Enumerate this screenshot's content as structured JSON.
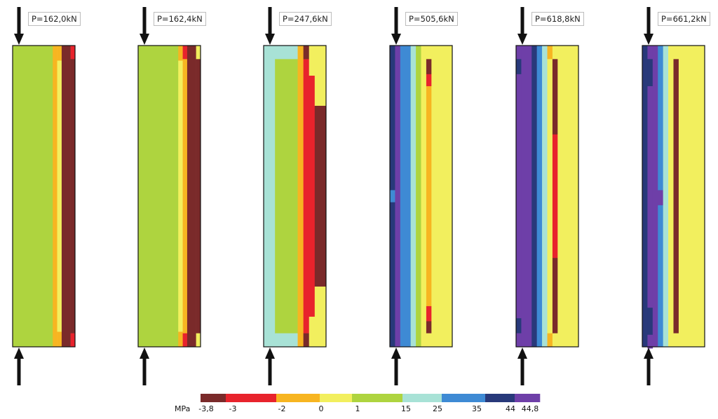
{
  "colors": {
    "c_m38": "#7a2a2a",
    "c_m3": "#e8232c",
    "c_m2": "#f7b521",
    "c_0": "#f2ef5e",
    "c_1": "#aed43f",
    "c_15": "#a8e2d6",
    "c_25": "#3e8ad4",
    "c_35": "#28397a",
    "c_44": "#6e3fa8",
    "outline": "#111111",
    "arrow": "#111111"
  },
  "legend": {
    "unit": "MPa",
    "bands": [
      "c_m38",
      "c_m3",
      "c_m2",
      "c_0",
      "c_1",
      "c_15",
      "c_25",
      "c_35",
      "c_44"
    ],
    "ticks": [
      "-3,8",
      "-3",
      "-2",
      "0",
      "1",
      "15",
      "25",
      "35",
      "44",
      "44,8"
    ]
  },
  "panels": [
    {
      "load_label": "P=162,0kN",
      "columns": [
        {
          "w": 9,
          "seq": [
            [
              "c_1",
              1
            ]
          ]
        },
        {
          "w": 1,
          "seq": [
            [
              "c_m2",
              1
            ]
          ]
        },
        {
          "w": 1,
          "seq": [
            [
              "c_m2",
              0.05
            ],
            [
              "c_0",
              0.9
            ],
            [
              "c_m2",
              0.05
            ]
          ]
        },
        {
          "w": 2,
          "seq": [
            [
              "c_m38",
              1
            ]
          ]
        },
        {
          "w": 1,
          "seq": [
            [
              "c_m3",
              0.045
            ],
            [
              "c_m38",
              0.91
            ],
            [
              "c_m3",
              0.045
            ]
          ]
        }
      ]
    },
    {
      "load_label": "P=162,4kN",
      "columns": [
        {
          "w": 9,
          "seq": [
            [
              "c_1",
              1
            ]
          ]
        },
        {
          "w": 1,
          "seq": [
            [
              "c_m2",
              0.05
            ],
            [
              "c_0",
              0.9
            ],
            [
              "c_m2",
              0.05
            ]
          ]
        },
        {
          "w": 1,
          "seq": [
            [
              "c_m3",
              0.045
            ],
            [
              "c_m2",
              0.91
            ],
            [
              "c_m3",
              0.045
            ]
          ]
        },
        {
          "w": 2,
          "seq": [
            [
              "c_m38",
              1
            ]
          ]
        },
        {
          "w": 1,
          "seq": [
            [
              "c_0",
              0.045
            ],
            [
              "c_m38",
              0.91
            ],
            [
              "c_0",
              0.045
            ]
          ]
        }
      ]
    },
    {
      "load_label": "P=247,6kN",
      "columns": [
        {
          "w": 2,
          "seq": [
            [
              "c_15",
              1
            ]
          ]
        },
        {
          "w": 4,
          "seq": [
            [
              "c_15",
              0.045
            ],
            [
              "c_1",
              0.91
            ],
            [
              "c_15",
              0.045
            ]
          ]
        },
        {
          "w": 1,
          "seq": [
            [
              "c_m2",
              1
            ]
          ]
        },
        {
          "w": 1,
          "seq": [
            [
              "c_m38",
              0.045
            ],
            [
              "c_m3",
              0.91
            ],
            [
              "c_m38",
              0.045
            ]
          ]
        },
        {
          "w": 1,
          "seq": [
            [
              "c_0",
              0.1
            ],
            [
              "c_m3",
              0.8
            ],
            [
              "c_0",
              0.1
            ]
          ]
        },
        {
          "w": 2,
          "seq": [
            [
              "c_0",
              0.2
            ],
            [
              "c_m38",
              0.6
            ],
            [
              "c_0",
              0.2
            ]
          ]
        }
      ]
    },
    {
      "load_label": "P=505,6kN",
      "columns": [
        {
          "w": 1,
          "seq": [
            [
              "c_35",
              0.48
            ],
            [
              "c_25",
              0.04
            ],
            [
              "c_35",
              0.48
            ]
          ]
        },
        {
          "w": 1,
          "seq": [
            [
              "c_44",
              1
            ]
          ]
        },
        {
          "w": 2,
          "seq": [
            [
              "c_25",
              1
            ]
          ]
        },
        {
          "w": 1,
          "seq": [
            [
              "c_15",
              1
            ]
          ]
        },
        {
          "w": 1,
          "seq": [
            [
              "c_1",
              1
            ]
          ]
        },
        {
          "w": 1,
          "seq": [
            [
              "c_0",
              1
            ]
          ]
        },
        {
          "w": 1,
          "seq": [
            [
              "c_0",
              0.045
            ],
            [
              "c_m38",
              0.05
            ],
            [
              "c_m3",
              0.04
            ],
            [
              "c_m2",
              0.73
            ],
            [
              "c_m3",
              0.05
            ],
            [
              "c_m38",
              0.04
            ],
            [
              "c_0",
              0.045
            ]
          ]
        },
        {
          "w": 4,
          "seq": [
            [
              "c_0",
              1
            ]
          ]
        }
      ]
    },
    {
      "load_label": "P=618,8kN",
      "columns": [
        {
          "w": 1,
          "seq": [
            [
              "c_44",
              0.045
            ],
            [
              "c_35",
              0.05
            ],
            [
              "c_44",
              0.81
            ],
            [
              "c_35",
              0.05
            ],
            [
              "c_44",
              0.045
            ]
          ]
        },
        {
          "w": 2,
          "seq": [
            [
              "c_44",
              1
            ]
          ]
        },
        {
          "w": 1,
          "seq": [
            [
              "c_35",
              1
            ]
          ]
        },
        {
          "w": 1,
          "seq": [
            [
              "c_25",
              1
            ]
          ]
        },
        {
          "w": 1,
          "seq": [
            [
              "c_15",
              1
            ]
          ]
        },
        {
          "w": 1,
          "seq": [
            [
              "c_m2",
              0.045
            ],
            [
              "c_0",
              0.91
            ],
            [
              "c_m2",
              0.045
            ]
          ]
        },
        {
          "w": 1,
          "seq": [
            [
              "c_0",
              0.045
            ],
            [
              "c_m38",
              0.25
            ],
            [
              "c_m3",
              0.41
            ],
            [
              "c_m38",
              0.25
            ],
            [
              "c_0",
              0.045
            ]
          ]
        },
        {
          "w": 4,
          "seq": [
            [
              "c_0",
              1
            ]
          ]
        }
      ]
    },
    {
      "load_label": "P=661,2kN",
      "columns": [
        {
          "w": 1,
          "seq": [
            [
              "c_35",
              1
            ]
          ]
        },
        {
          "w": 1,
          "seq": [
            [
              "c_44",
              0.045
            ],
            [
              "c_35",
              0.09
            ],
            [
              "c_44",
              0.735
            ],
            [
              "c_35",
              0.09
            ],
            [
              "c_44",
              0.045
            ]
          ]
        },
        {
          "w": 1,
          "seq": [
            [
              "c_44",
              1
            ]
          ]
        },
        {
          "w": 1,
          "seq": [
            [
              "c_25",
              0.48
            ],
            [
              "c_44",
              0.05
            ],
            [
              "c_25",
              0.47
            ]
          ]
        },
        {
          "w": 1,
          "seq": [
            [
              "c_15",
              1
            ]
          ]
        },
        {
          "w": 1,
          "seq": [
            [
              "c_0",
              1
            ]
          ]
        },
        {
          "w": 1,
          "seq": [
            [
              "c_0",
              0.045
            ],
            [
              "c_m38",
              0.91
            ],
            [
              "c_0",
              0.045
            ]
          ]
        },
        {
          "w": 5,
          "seq": [
            [
              "c_0",
              1
            ]
          ]
        }
      ]
    }
  ]
}
